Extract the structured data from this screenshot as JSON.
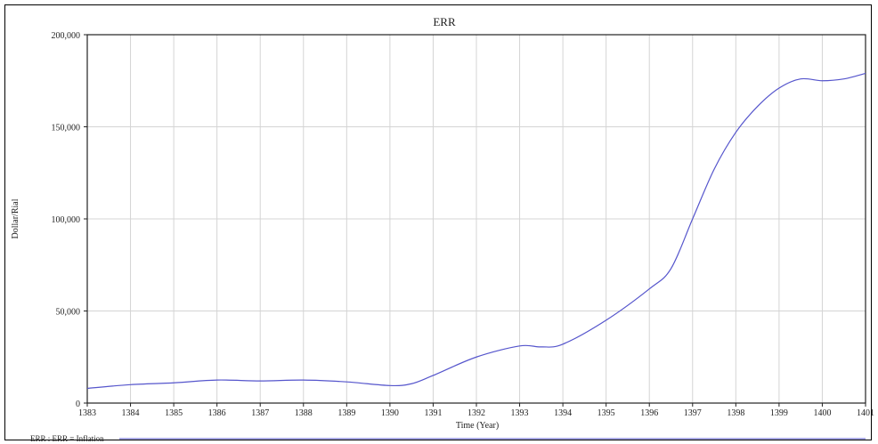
{
  "chart_data": {
    "type": "line",
    "title": "ERR",
    "xlabel": "Time (Year)",
    "ylabel": "Dollar/Rial",
    "xlim": [
      1383,
      1401
    ],
    "ylim": [
      0,
      200000
    ],
    "x_ticks": [
      "1383",
      "1384",
      "1385",
      "1386",
      "1387",
      "1388",
      "1389",
      "1390",
      "1391",
      "1392",
      "1393",
      "1394",
      "1395",
      "1396",
      "1397",
      "1398",
      "1399",
      "1400",
      "1401"
    ],
    "y_ticks": [
      {
        "value": 0,
        "label": "0"
      },
      {
        "value": 50000,
        "label": "50,000"
      },
      {
        "value": 100000,
        "label": "100,000"
      },
      {
        "value": 150000,
        "label": "150,000"
      },
      {
        "value": 200000,
        "label": "200,000"
      }
    ],
    "grid": true,
    "series": [
      {
        "name": "ERR : ERR = Inflation",
        "color": "#5555cc",
        "x": [
          1383,
          1384,
          1385,
          1386,
          1387,
          1388,
          1389,
          1390,
          1390.5,
          1391,
          1392,
          1393,
          1393.5,
          1394,
          1395,
          1396,
          1396.5,
          1397,
          1397.5,
          1398,
          1398.5,
          1399,
          1399.5,
          1400,
          1400.5,
          1401
        ],
        "y": [
          8000,
          10000,
          11000,
          12500,
          12000,
          12500,
          11500,
          9500,
          10500,
          15000,
          25000,
          31000,
          30500,
          32000,
          45000,
          62000,
          73000,
          100000,
          127000,
          147000,
          161000,
          171000,
          176000,
          175000,
          176000,
          179000
        ]
      }
    ]
  }
}
